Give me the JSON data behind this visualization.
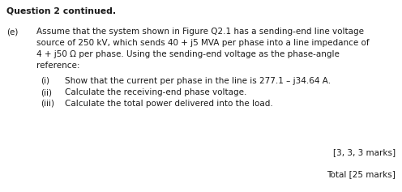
{
  "background_color": "#ffffff",
  "title_bold": "Question 2 continued.",
  "title_fontsize": 7.8,
  "body_fontsize": 7.5,
  "part_label": "(e)",
  "part_text_lines": [
    "Assume that the system shown in Figure Q2.1 has a sending-end line voltage",
    "source of 250 kV, which sends 40 + j5 MVA per phase into a line impedance of",
    "4 + j50 Ω per phase. Using the sending-end voltage as the phase-angle",
    "reference:"
  ],
  "sub_items": [
    {
      "label": "(i)",
      "text": "Show that the current per phase in the line is 277.1 – j34.64 A."
    },
    {
      "label": "(ii)",
      "text": "Calculate the receiving-end phase voltage."
    },
    {
      "label": "(iii)",
      "text": "Calculate the total power delivered into the load."
    }
  ],
  "marks_line": "[3, 3, 3 marks]",
  "total_line": "Total [25 marks]",
  "text_color": "#1a1a1a",
  "fig_width": 4.96,
  "fig_height": 2.37,
  "dpi": 100
}
